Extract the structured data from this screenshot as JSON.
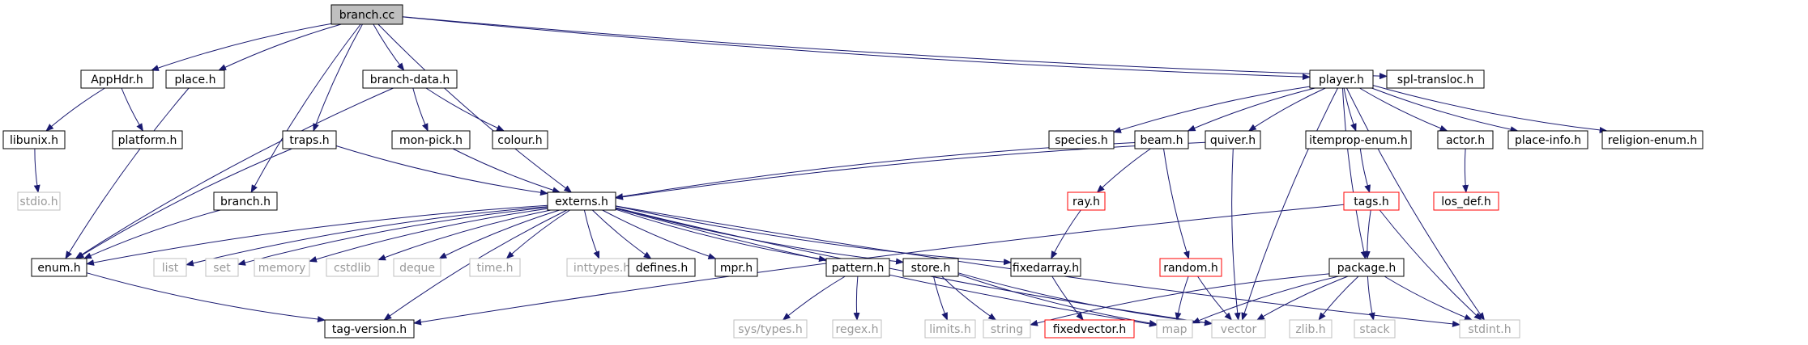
{
  "colors": {
    "edge": "#191970",
    "node_border": "#000000",
    "node_fill_root": "#bfbfbf",
    "node_border_missing": "#bfbfbf",
    "node_border_truncated": "#ff0000",
    "text_dark": "#000000",
    "text_grey": "#9a9a9a"
  },
  "nodes": [
    {
      "id": "branch_cc",
      "label": "branch.cc",
      "style": "root"
    },
    {
      "id": "apphdr",
      "label": "AppHdr.h",
      "style": "normal"
    },
    {
      "id": "place",
      "label": "place.h",
      "style": "normal"
    },
    {
      "id": "branchdata",
      "label": "branch-data.h",
      "style": "normal"
    },
    {
      "id": "player",
      "label": "player.h",
      "style": "normal"
    },
    {
      "id": "spltransloc",
      "label": "spl-transloc.h",
      "style": "normal"
    },
    {
      "id": "libunix",
      "label": "libunix.h",
      "style": "normal"
    },
    {
      "id": "platform",
      "label": "platform.h",
      "style": "normal"
    },
    {
      "id": "stdio",
      "label": "stdio.h",
      "style": "missing"
    },
    {
      "id": "traps",
      "label": "traps.h",
      "style": "normal"
    },
    {
      "id": "monpick",
      "label": "mon-pick.h",
      "style": "normal"
    },
    {
      "id": "colour",
      "label": "colour.h",
      "style": "normal"
    },
    {
      "id": "branchh",
      "label": "branch.h",
      "style": "normal"
    },
    {
      "id": "externs",
      "label": "externs.h",
      "style": "normal"
    },
    {
      "id": "enum",
      "label": "enum.h",
      "style": "normal"
    },
    {
      "id": "list",
      "label": "list",
      "style": "missing"
    },
    {
      "id": "set",
      "label": "set",
      "style": "missing"
    },
    {
      "id": "memory",
      "label": "memory",
      "style": "missing"
    },
    {
      "id": "cstdlib",
      "label": "cstdlib",
      "style": "missing"
    },
    {
      "id": "deque",
      "label": "deque",
      "style": "missing"
    },
    {
      "id": "timeh",
      "label": "time.h",
      "style": "missing"
    },
    {
      "id": "inttypes",
      "label": "inttypes.h",
      "style": "missing"
    },
    {
      "id": "defines",
      "label": "defines.h",
      "style": "normal"
    },
    {
      "id": "mpr",
      "label": "mpr.h",
      "style": "normal"
    },
    {
      "id": "pattern",
      "label": "pattern.h",
      "style": "normal"
    },
    {
      "id": "store",
      "label": "store.h",
      "style": "normal"
    },
    {
      "id": "fixedarray",
      "label": "fixedarray.h",
      "style": "normal"
    },
    {
      "id": "species",
      "label": "species.h",
      "style": "normal"
    },
    {
      "id": "beam",
      "label": "beam.h",
      "style": "normal"
    },
    {
      "id": "quiver",
      "label": "quiver.h",
      "style": "normal"
    },
    {
      "id": "itemprop",
      "label": "itemprop-enum.h",
      "style": "normal"
    },
    {
      "id": "actor",
      "label": "actor.h",
      "style": "normal"
    },
    {
      "id": "placeinfo",
      "label": "place-info.h",
      "style": "normal"
    },
    {
      "id": "religion",
      "label": "religion-enum.h",
      "style": "normal"
    },
    {
      "id": "ray",
      "label": "ray.h",
      "style": "truncated"
    },
    {
      "id": "tags",
      "label": "tags.h",
      "style": "truncated"
    },
    {
      "id": "losdef",
      "label": "los_def.h",
      "style": "truncated"
    },
    {
      "id": "random",
      "label": "random.h",
      "style": "truncated"
    },
    {
      "id": "package",
      "label": "package.h",
      "style": "normal"
    },
    {
      "id": "tagversion",
      "label": "tag-version.h",
      "style": "normal"
    },
    {
      "id": "systypes",
      "label": "sys/types.h",
      "style": "missing"
    },
    {
      "id": "regex",
      "label": "regex.h",
      "style": "missing"
    },
    {
      "id": "limits",
      "label": "limits.h",
      "style": "missing"
    },
    {
      "id": "string",
      "label": "string",
      "style": "missing"
    },
    {
      "id": "fixedvector",
      "label": "fixedvector.h",
      "style": "truncated"
    },
    {
      "id": "map",
      "label": "map",
      "style": "missing"
    },
    {
      "id": "vector",
      "label": "vector",
      "style": "missing"
    },
    {
      "id": "zlib",
      "label": "zlib.h",
      "style": "missing"
    },
    {
      "id": "stack",
      "label": "stack",
      "style": "missing"
    },
    {
      "id": "stdint",
      "label": "stdint.h",
      "style": "missing"
    }
  ],
  "edges": [
    [
      "branch_cc",
      "apphdr"
    ],
    [
      "branch_cc",
      "place"
    ],
    [
      "branch_cc",
      "branchdata"
    ],
    [
      "branch_cc",
      "player"
    ],
    [
      "branch_cc",
      "spltransloc"
    ],
    [
      "branch_cc",
      "traps"
    ],
    [
      "branch_cc",
      "branchh"
    ],
    [
      "branch_cc",
      "externs"
    ],
    [
      "apphdr",
      "libunix"
    ],
    [
      "apphdr",
      "platform"
    ],
    [
      "libunix",
      "stdio"
    ],
    [
      "place",
      "enum"
    ],
    [
      "branchdata",
      "monpick"
    ],
    [
      "branchdata",
      "colour"
    ],
    [
      "branchdata",
      "enum"
    ],
    [
      "traps",
      "enum"
    ],
    [
      "traps",
      "externs"
    ],
    [
      "monpick",
      "externs"
    ],
    [
      "branchh",
      "enum"
    ],
    [
      "externs",
      "enum"
    ],
    [
      "externs",
      "list"
    ],
    [
      "externs",
      "set"
    ],
    [
      "externs",
      "memory"
    ],
    [
      "externs",
      "cstdlib"
    ],
    [
      "externs",
      "deque"
    ],
    [
      "externs",
      "timeh"
    ],
    [
      "externs",
      "inttypes"
    ],
    [
      "externs",
      "defines"
    ],
    [
      "externs",
      "mpr"
    ],
    [
      "externs",
      "pattern"
    ],
    [
      "externs",
      "store"
    ],
    [
      "externs",
      "fixedarray"
    ],
    [
      "externs",
      "map"
    ],
    [
      "externs",
      "vector"
    ],
    [
      "externs",
      "stdint"
    ],
    [
      "externs",
      "tagversion"
    ],
    [
      "enum",
      "tagversion"
    ],
    [
      "pattern",
      "systypes"
    ],
    [
      "pattern",
      "regex"
    ],
    [
      "store",
      "limits"
    ],
    [
      "store",
      "string"
    ],
    [
      "store",
      "map"
    ],
    [
      "store",
      "vector"
    ],
    [
      "fixedarray",
      "fixedvector"
    ],
    [
      "player",
      "species"
    ],
    [
      "player",
      "beam"
    ],
    [
      "player",
      "quiver"
    ],
    [
      "player",
      "itemprop"
    ],
    [
      "player",
      "actor"
    ],
    [
      "player",
      "placeinfo"
    ],
    [
      "player",
      "religion"
    ],
    [
      "player",
      "package"
    ],
    [
      "player",
      "vector"
    ],
    [
      "player",
      "stdint"
    ],
    [
      "beam",
      "externs"
    ],
    [
      "beam",
      "ray"
    ],
    [
      "beam",
      "random"
    ],
    [
      "quiver",
      "externs"
    ],
    [
      "quiver",
      "vector"
    ],
    [
      "ray",
      "fixedarray"
    ],
    [
      "itemprop",
      "tags"
    ],
    [
      "tags",
      "package"
    ],
    [
      "tags",
      "stdint"
    ],
    [
      "tags",
      "tagversion"
    ],
    [
      "actor",
      "losdef"
    ],
    [
      "random",
      "map"
    ],
    [
      "random",
      "vector"
    ],
    [
      "package",
      "string"
    ],
    [
      "package",
      "map"
    ],
    [
      "package",
      "vector"
    ],
    [
      "package",
      "zlib"
    ],
    [
      "package",
      "stack"
    ],
    [
      "package",
      "stdint"
    ]
  ]
}
